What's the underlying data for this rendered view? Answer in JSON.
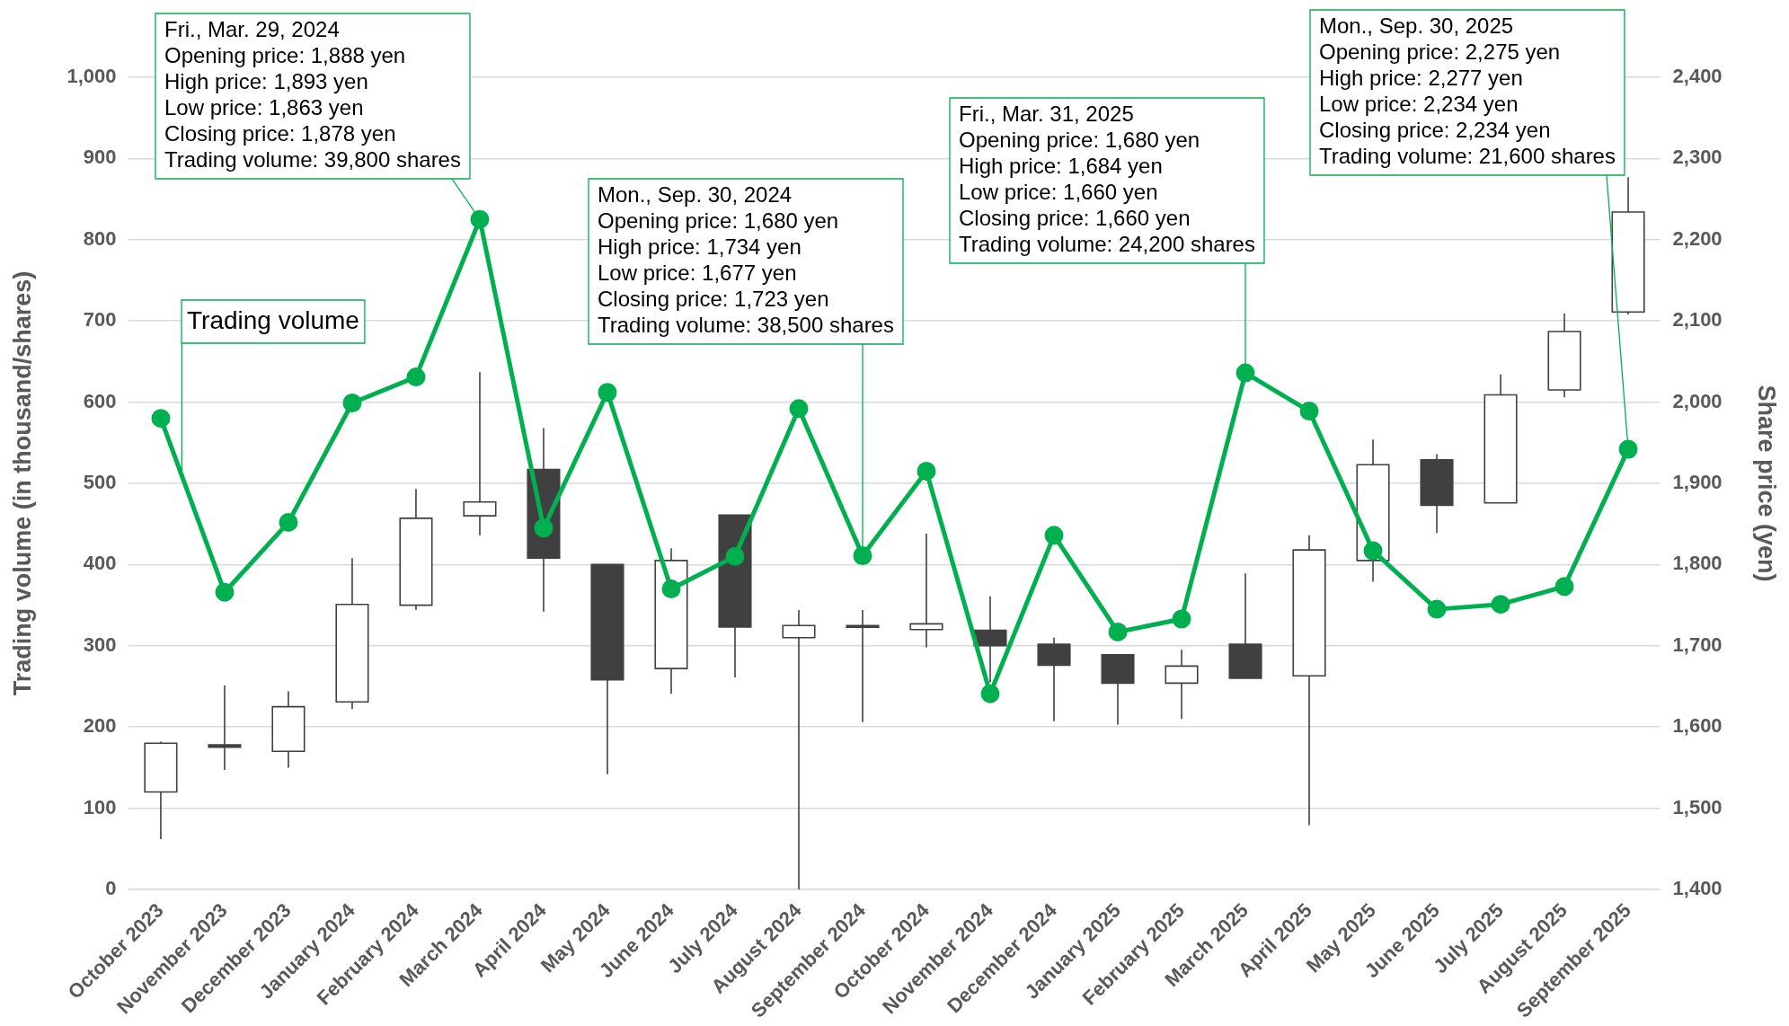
{
  "chart_data": {
    "type": "candlestick",
    "categories": [
      "October 2023",
      "November 2023",
      "December 2023",
      "January 2024",
      "February 2024",
      "March 2024",
      "April 2024",
      "May 2024",
      "June 2024",
      "July 2024",
      "August 2024",
      "September 2024",
      "October 2024",
      "November 2024",
      "December 2024",
      "January 2025",
      "February 2025",
      "March 2025",
      "April 2025",
      "May 2025",
      "June 2025",
      "July 2025",
      "August 2025",
      "September 2025"
    ],
    "ylabel": "Trading volume (in thousand/shares)",
    "y2label": "Share price (yen)",
    "ylim": [
      0,
      1000
    ],
    "yticks": [
      0,
      100,
      200,
      300,
      400,
      500,
      600,
      700,
      800,
      900,
      {
        "value": 1000,
        "label": "1,000"
      }
    ],
    "y2lim": [
      1400,
      2400
    ],
    "y2ticks": [
      {
        "value": 1400,
        "label": "1,400"
      },
      {
        "value": 1500,
        "label": "1,500"
      },
      {
        "value": 1600,
        "label": "1,600"
      },
      {
        "value": 1700,
        "label": "1,700"
      },
      {
        "value": 1800,
        "label": "1,800"
      },
      {
        "value": 1900,
        "label": "1,900"
      },
      {
        "value": 2000,
        "label": "2,000"
      },
      {
        "value": 2100,
        "label": "2,100"
      },
      {
        "value": 2200,
        "label": "2,200"
      },
      {
        "value": 2300,
        "label": "2,300"
      },
      {
        "value": 2400,
        "label": "2,400"
      }
    ],
    "grid": "y",
    "legend": false,
    "series": [
      {
        "type": "line",
        "name": "Trading volume",
        "color": "#00b050",
        "marker": "circle",
        "values": [
          580,
          366,
          452,
          599,
          631,
          825,
          445,
          612,
          370,
          410,
          592,
          411,
          515,
          241,
          436,
          317,
          333,
          636,
          589,
          417,
          345,
          351,
          373,
          542
        ]
      },
      {
        "type": "candlestick",
        "axis": "y2",
        "color": "#404040",
        "colors": [
          "#ffffff",
          "#404040",
          "#ffffff",
          "#ffffff",
          "#ffffff",
          "#ffffff",
          "#404040",
          "#404040",
          "#ffffff",
          "#404040",
          "#ffffff",
          "#404040",
          "#ffffff",
          "#404040",
          "#404040",
          "#404040",
          "#ffffff",
          "#404040",
          "#ffffff",
          "#ffffff",
          "#404040",
          "#ffffff",
          "#ffffff",
          "#ffffff"
        ],
        "ohlc": [
          [
            1520,
            1582,
            1462,
            1580
          ],
          [
            1578,
            1651,
            1547,
            1575
          ],
          [
            1570,
            1644,
            1550,
            1625
          ],
          [
            1631,
            1808,
            1622,
            1751
          ],
          [
            1750,
            1893,
            1744,
            1857
          ],
          [
            1860,
            2037,
            1836,
            1877
          ],
          [
            1917,
            1968,
            1742,
            1808
          ],
          [
            1800,
            1800,
            1542,
            1658
          ],
          [
            1672,
            1820,
            1641,
            1805
          ],
          [
            1861,
            1861,
            1661,
            1723
          ],
          [
            1710,
            1744,
            1400,
            1725
          ],
          [
            1725,
            1744,
            1606,
            1723
          ],
          [
            1720,
            1838,
            1698,
            1727
          ],
          [
            1719,
            1761,
            1655,
            1700
          ],
          [
            1702,
            1710,
            1607,
            1676
          ],
          [
            1689,
            1689,
            1603,
            1654
          ],
          [
            1654,
            1695,
            1610,
            1675
          ],
          [
            1702,
            1789,
            1660,
            1660
          ],
          [
            1663,
            1836,
            1479,
            1818
          ],
          [
            1805,
            1954,
            1779,
            1923
          ],
          [
            1929,
            1936,
            1839,
            1873
          ],
          [
            1876,
            2034,
            1876,
            2009
          ],
          [
            2015,
            2109,
            2006,
            2087
          ],
          [
            2111,
            2277,
            2108,
            2234
          ]
        ]
      }
    ],
    "annotations": [
      {
        "text": "Fri., Mar. 29, 2024\nOpening price: 1,888 yen\nHigh price: 1,893 yen\nLow price: 1,863 yen\nClosing price: 1,878 yen\nTrading volume: 39,800 shares",
        "x": "March 2024",
        "y": 825
      },
      {
        "text": "Mon., Sep. 30, 2024\nOpening price: 1,680 yen\nHigh price: 1,734 yen\nLow price: 1,677 yen\nClosing price: 1,723 yen\nTrading volume: 38,500 shares",
        "x": "September 2024",
        "y": 411
      },
      {
        "text": "Fri., Mar. 31, 2025\nOpening price: 1,680 yen\nHigh price: 1,684 yen\nLow price: 1,660 yen\nClosing price: 1,660 yen\nTrading volume: 24,200 shares",
        "x": "March 2025",
        "y": 636
      },
      {
        "text": "Mon., Sep. 30, 2025\nOpening price: 2,275 yen\nHigh price: 2,277 yen\nLow price: 2,234 yen\nClosing price: 2,234 yen\nTrading volume: 21,600 shares",
        "x": "September 2025",
        "y": 542
      }
    ]
  }
}
